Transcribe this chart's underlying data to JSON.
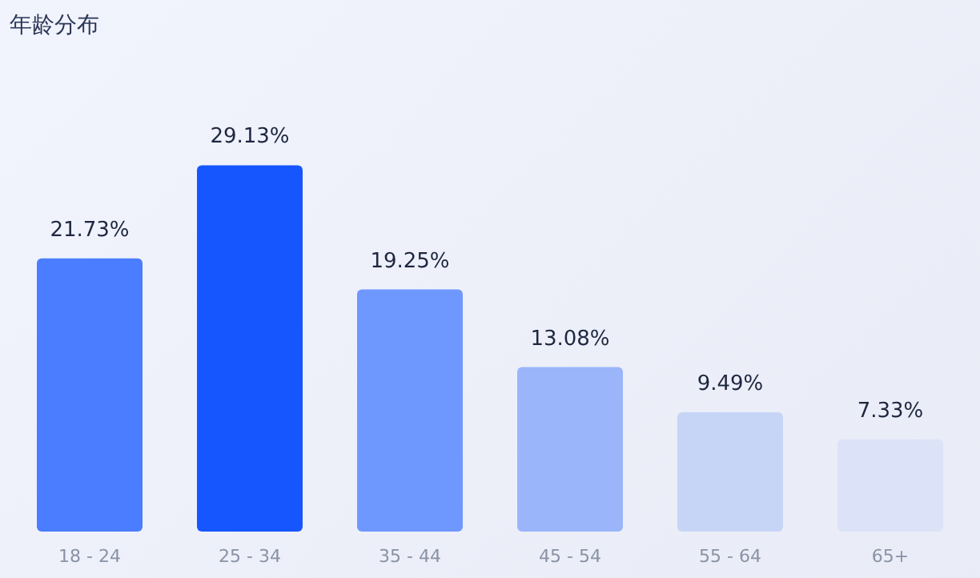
{
  "chart_data": {
    "type": "bar",
    "title": "年龄分布",
    "categories": [
      "18 - 24",
      "25 - 34",
      "35 - 44",
      "45 - 54",
      "55 - 64",
      "65+"
    ],
    "values": [
      21.73,
      29.13,
      19.25,
      13.08,
      9.49,
      7.33
    ],
    "colors": [
      "#4a7dff",
      "#1656ff",
      "#6f98ff",
      "#9bb5fa",
      "#c6d4f6",
      "#dce3f8"
    ],
    "value_labels": [
      "21.73%",
      "29.13%",
      "19.25%",
      "13.08%",
      "9.49%",
      "7.33%"
    ]
  }
}
